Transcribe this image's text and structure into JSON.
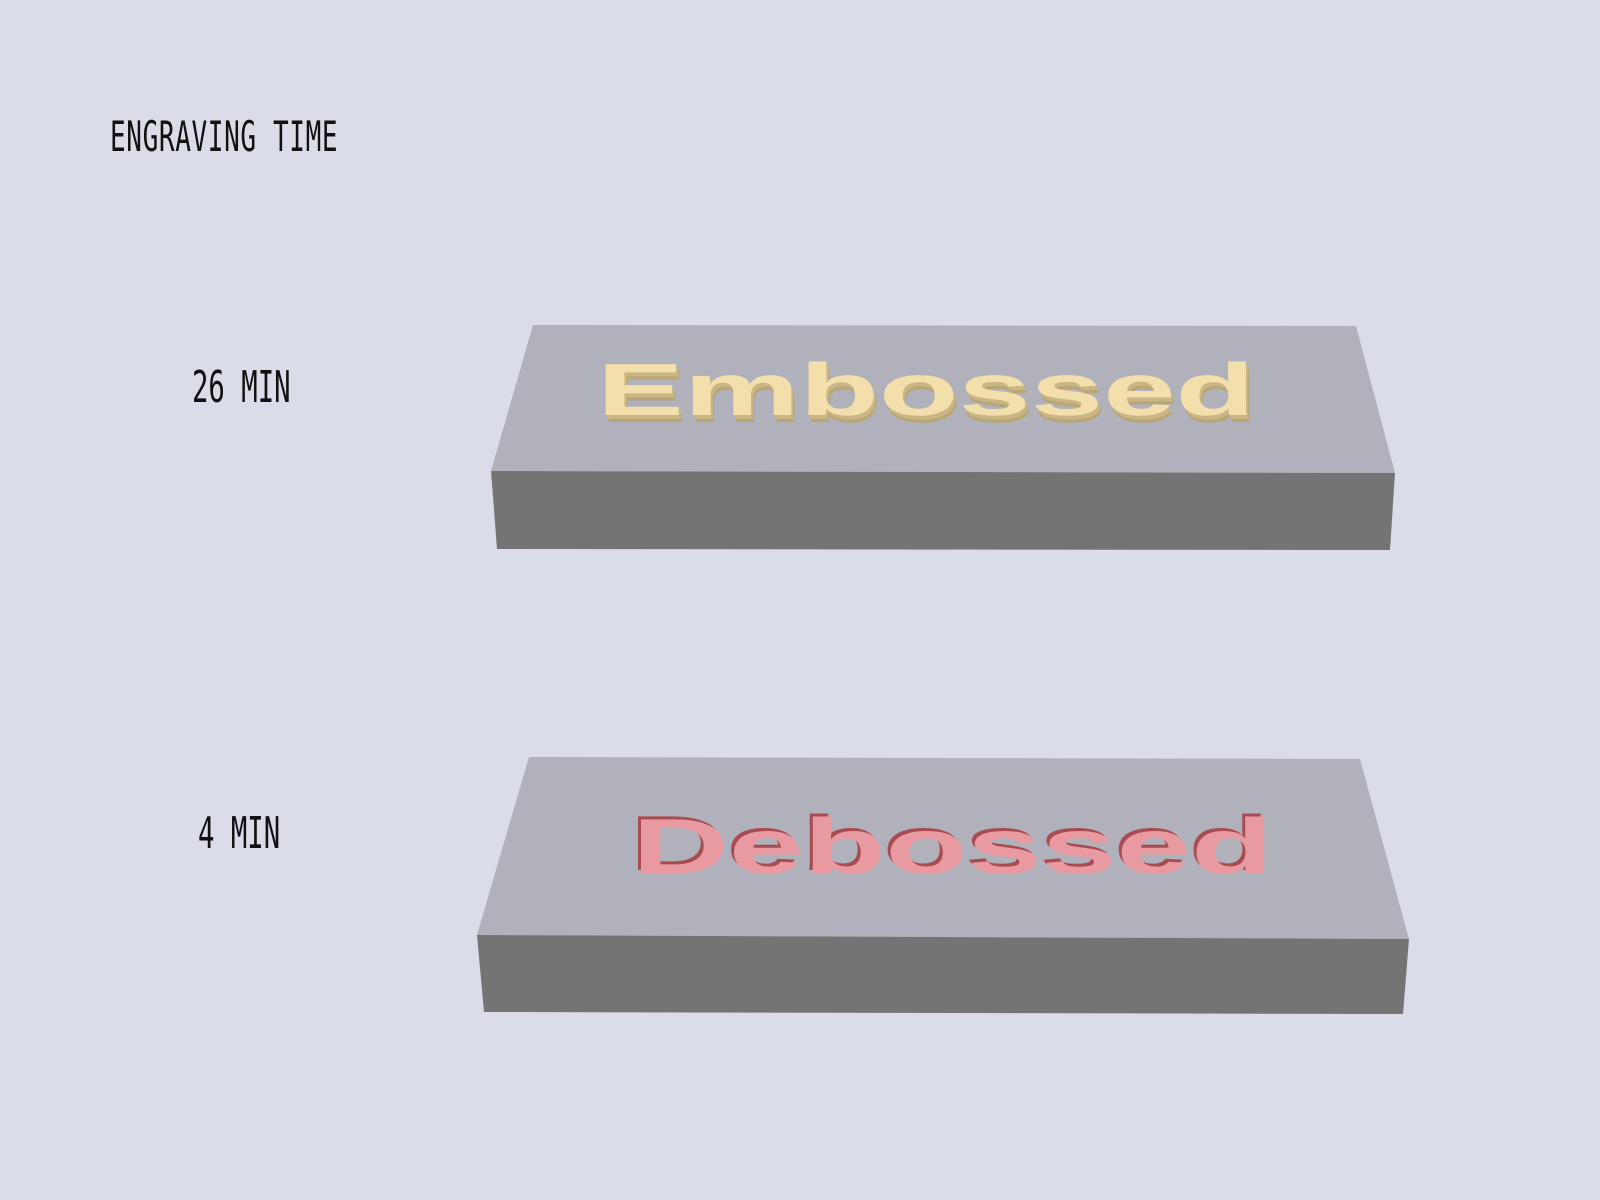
{
  "heading": "ENGRAVING TIME",
  "rows": [
    {
      "time": "26 MIN",
      "block_text": "Embossed",
      "style": "embossed"
    },
    {
      "time": "4 MIN",
      "block_text": "Debossed",
      "style": "debossed"
    }
  ],
  "colors": {
    "background": "#dadce8",
    "block_top": "#b0b1ba",
    "block_front": "#747474",
    "embossed_text": "#f2dfab",
    "embossed_side": "#b8a677",
    "debossed_text": "#e89aa0",
    "debossed_shadow": "#a84c52"
  }
}
